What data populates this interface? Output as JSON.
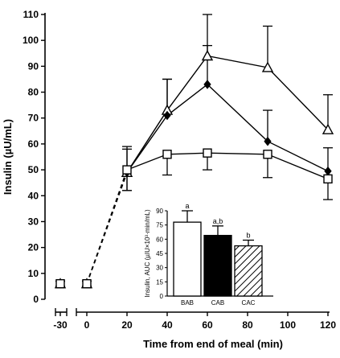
{
  "chart_data": [
    {
      "type": "line",
      "title": "",
      "xlabel": "Time from end of meal (min)",
      "ylabel": "Insulin (µU/mL)",
      "xlim": [
        -30,
        120
      ],
      "ylim": [
        0,
        110
      ],
      "x_ticks": [
        -30,
        0,
        20,
        40,
        60,
        80,
        100,
        120
      ],
      "y_ticks": [
        0,
        10,
        20,
        30,
        40,
        50,
        60,
        70,
        80,
        90,
        100,
        110
      ],
      "x": [
        -30,
        0,
        20,
        40,
        60,
        90,
        120
      ],
      "series": [
        {
          "marker": "triangle-open",
          "values": [
            6,
            6,
            49,
            73,
            94,
            89.5,
            65.5
          ],
          "error_upper": [
            1,
            1,
            9,
            12,
            16,
            16,
            13.5
          ],
          "error_lower": [
            1,
            1,
            7,
            0,
            0,
            0,
            0
          ]
        },
        {
          "marker": "diamond-filled",
          "values": [
            6,
            6,
            49,
            71,
            83,
            61,
            49.5
          ],
          "error_upper": [
            1,
            1,
            0,
            14,
            15,
            12,
            9
          ],
          "error_lower": [
            1,
            1,
            0,
            0,
            0,
            0,
            0
          ]
        },
        {
          "marker": "square-open",
          "values": [
            6,
            6,
            50,
            56,
            56.5,
            56,
            46.5
          ],
          "error_upper": [
            1,
            1,
            9,
            0,
            0,
            0,
            0
          ],
          "error_lower": [
            1,
            1,
            8,
            8,
            6.5,
            9,
            8
          ]
        }
      ],
      "baseline_segment": "dashed"
    },
    {
      "type": "bar",
      "ylabel": "Insulin, AUC (µIU×10³·min/mL)",
      "ylim": [
        0,
        90
      ],
      "y_ticks": [
        0,
        15,
        30,
        45,
        60,
        75,
        90
      ],
      "categories": [
        "BAB",
        "CAB",
        "CAC"
      ],
      "values": [
        78,
        64,
        53
      ],
      "error_upper": [
        12,
        10,
        6
      ],
      "significance": [
        "a",
        "a,b",
        "b"
      ],
      "fills": [
        "open",
        "solid",
        "hatched"
      ]
    }
  ]
}
